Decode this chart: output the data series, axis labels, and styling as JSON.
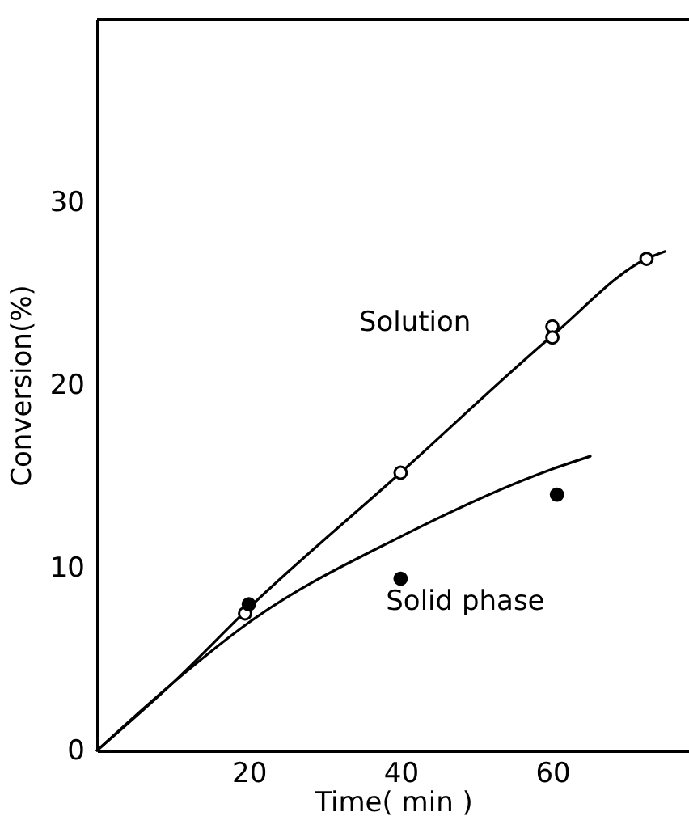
{
  "chart_data": {
    "type": "scatter",
    "xlabel": "Time( min )",
    "ylabel": "Conversion(%)",
    "xlim": [
      0,
      78
    ],
    "ylim": [
      0,
      40
    ],
    "xticks": [
      20,
      40,
      60
    ],
    "yticks": [
      0,
      10,
      20,
      30
    ],
    "series": [
      {
        "type": "line",
        "name": "Solution",
        "color": "#000000",
        "marker": "none",
        "x": [
          0,
          10,
          20,
          40,
          60,
          72.4,
          74.8
        ],
        "values": [
          0,
          3.7,
          7.8,
          15.2,
          22.7,
          26.9,
          27.3
        ]
      },
      {
        "type": "line",
        "name": "Solid phase",
        "color": "#000000",
        "marker": "none",
        "x": [
          0,
          10,
          20,
          40,
          60,
          65
        ],
        "values": [
          0,
          3.7,
          7.0,
          11.7,
          15.4,
          16.1
        ]
      },
      {
        "color": "#000000",
        "marker": "circle",
        "x": [
          19.5,
          40,
          60,
          60,
          72.4
        ],
        "values": [
          7.5,
          15.2,
          23.2,
          22.6,
          26.9
        ]
      },
      {
        "color": "#000000",
        "marker": "circle",
        "x": [
          20,
          40,
          60.6
        ],
        "values": [
          8.0,
          9.4,
          14.0
        ]
      }
    ]
  }
}
